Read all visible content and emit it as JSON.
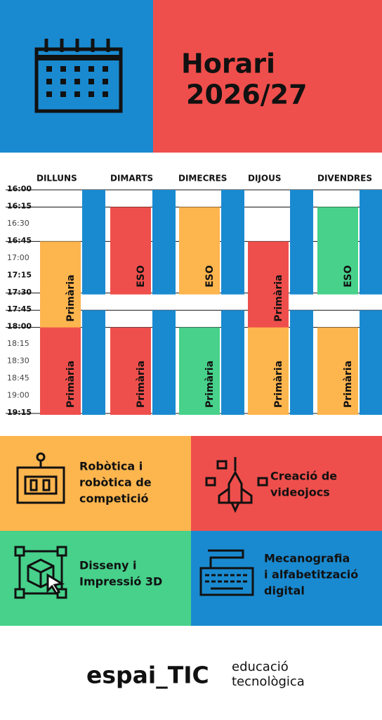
{
  "header": {
    "title_lines": [
      "Horari",
      "2026/27"
    ]
  },
  "schedule": {
    "days": [
      "DILLUNS",
      "DIMARTS",
      "DIMECRES",
      "DIJOUS",
      "DIVENDRES"
    ],
    "times": [
      "16:00",
      "16:15",
      "16:30",
      "16:45",
      "17:00",
      "17:15",
      "17:30",
      "17:45",
      "18:00",
      "18:15",
      "18:30",
      "18:45",
      "19:00",
      "19:15"
    ],
    "blocks": [
      [
        "Primària",
        "Primària"
      ],
      [
        "ESO",
        "Primària"
      ],
      [
        "ESO",
        "Primària"
      ],
      [
        "Primària",
        "Primària"
      ],
      [
        "ESO",
        "Primària"
      ]
    ]
  },
  "activities": [
    {
      "lines": [
        "Robòtica i",
        "robòtica de",
        "competició"
      ]
    },
    {
      "lines": [
        "Creació de",
        "videojocs"
      ]
    },
    {
      "lines": [
        "Disseny i",
        "Impressió 3D"
      ]
    },
    {
      "lines": [
        "Mecanografia",
        "i alfabetització",
        "digital"
      ]
    }
  ],
  "footer": {
    "brand": "espai_TIC",
    "tagline_lines": [
      "educació",
      "tecnològica"
    ]
  }
}
